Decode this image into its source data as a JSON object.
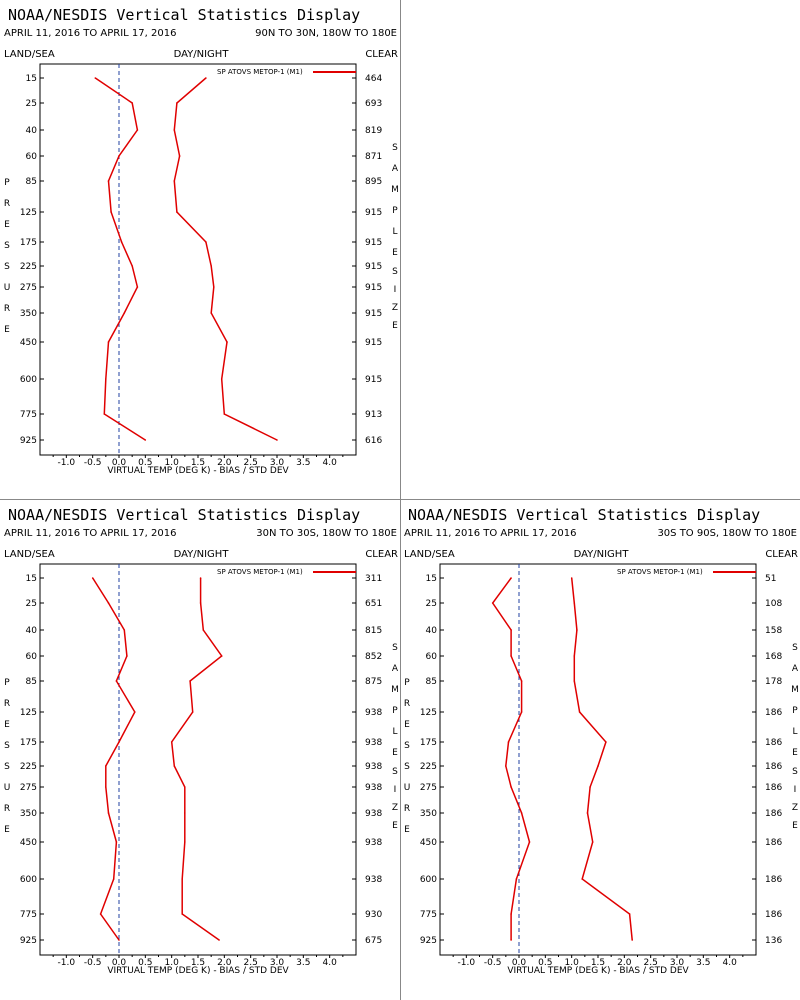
{
  "colors": {
    "series": "#e00000",
    "axis": "#000000",
    "zero_line": "#2040a0"
  },
  "common": {
    "title": "NOAA/NESDIS Vertical Statistics Display",
    "date_range": "APRIL 11, 2016 TO APRIL 17, 2016",
    "left_header": "LAND/SEA",
    "mid_header": "DAY/NIGHT",
    "right_header": "CLEAR",
    "legend": "SP ATOVS METOP-1 (M1)",
    "xlabel": "VIRTUAL TEMP (DEG K) - BIAS / STD DEV",
    "pressure_letters": [
      "P",
      "R",
      "E",
      "S",
      "S",
      "U",
      "R",
      "E"
    ],
    "sample_letters": [
      "S",
      "A",
      "M",
      "P",
      "L",
      "E"
    ],
    "size_letters": [
      "S",
      "I",
      "Z",
      "E"
    ],
    "x_ticks": [
      "-1.0",
      "-0.5",
      "0.0",
      "0.5",
      "1.0",
      "1.5",
      "2.0",
      "2.5",
      "3.0",
      "3.5",
      "4.0"
    ],
    "pressure_levels": [
      "15",
      "25",
      "40",
      "60",
      "85",
      "125",
      "175",
      "225",
      "275",
      "350",
      "450",
      "600",
      "775",
      "925"
    ]
  },
  "chart_data": [
    {
      "type": "line",
      "region": "90N TO 30N, 180W TO 180E",
      "xlim": [
        -1.5,
        4.5
      ],
      "pressure": [
        15,
        25,
        40,
        60,
        85,
        125,
        175,
        225,
        275,
        350,
        450,
        600,
        775,
        925
      ],
      "sample_size": [
        "464",
        "693",
        "819",
        "871",
        "895",
        "915",
        "915",
        "915",
        "915",
        "915",
        "915",
        "915",
        "913",
        "616"
      ],
      "series": [
        {
          "name": "bias",
          "values": [
            -0.45,
            0.25,
            0.35,
            0.0,
            -0.2,
            -0.15,
            0.05,
            0.25,
            0.35,
            0.1,
            -0.2,
            -0.25,
            -0.28,
            0.5
          ]
        },
        {
          "name": "std_dev",
          "values": [
            1.65,
            1.1,
            1.05,
            1.15,
            1.05,
            1.1,
            1.65,
            1.75,
            1.8,
            1.75,
            2.05,
            1.95,
            2.0,
            3.0
          ]
        }
      ]
    },
    {
      "type": "line",
      "region": "30N TO 30S, 180W TO 180E",
      "xlim": [
        -1.5,
        4.5
      ],
      "pressure": [
        15,
        25,
        40,
        60,
        85,
        125,
        175,
        225,
        275,
        350,
        450,
        600,
        775,
        925
      ],
      "sample_size": [
        "311",
        "651",
        "815",
        "852",
        "875",
        "938",
        "938",
        "938",
        "938",
        "938",
        "938",
        "938",
        "930",
        "675"
      ],
      "series": [
        {
          "name": "bias",
          "values": [
            -0.5,
            -0.2,
            0.1,
            0.15,
            -0.05,
            0.3,
            0.0,
            -0.25,
            -0.25,
            -0.2,
            -0.05,
            -0.1,
            -0.35,
            0.0
          ]
        },
        {
          "name": "std_dev",
          "values": [
            1.55,
            1.55,
            1.6,
            1.95,
            1.35,
            1.4,
            1.0,
            1.05,
            1.25,
            1.25,
            1.25,
            1.2,
            1.2,
            1.9
          ]
        }
      ]
    },
    {
      "type": "line",
      "region": "30S TO 90S, 180W TO 180E",
      "xlim": [
        -1.5,
        4.5
      ],
      "pressure": [
        15,
        25,
        40,
        60,
        85,
        125,
        175,
        225,
        275,
        350,
        450,
        600,
        775,
        925
      ],
      "sample_size": [
        "51",
        "108",
        "158",
        "168",
        "178",
        "186",
        "186",
        "186",
        "186",
        "186",
        "186",
        "186",
        "186",
        "136"
      ],
      "series": [
        {
          "name": "bias",
          "values": [
            -0.15,
            -0.5,
            -0.15,
            -0.15,
            0.05,
            0.05,
            -0.2,
            -0.25,
            -0.15,
            0.05,
            0.2,
            -0.05,
            -0.15,
            -0.15
          ]
        },
        {
          "name": "std_dev",
          "values": [
            1.0,
            1.05,
            1.1,
            1.05,
            1.05,
            1.15,
            1.65,
            1.5,
            1.35,
            1.3,
            1.4,
            1.2,
            2.1,
            2.15
          ]
        }
      ]
    }
  ]
}
